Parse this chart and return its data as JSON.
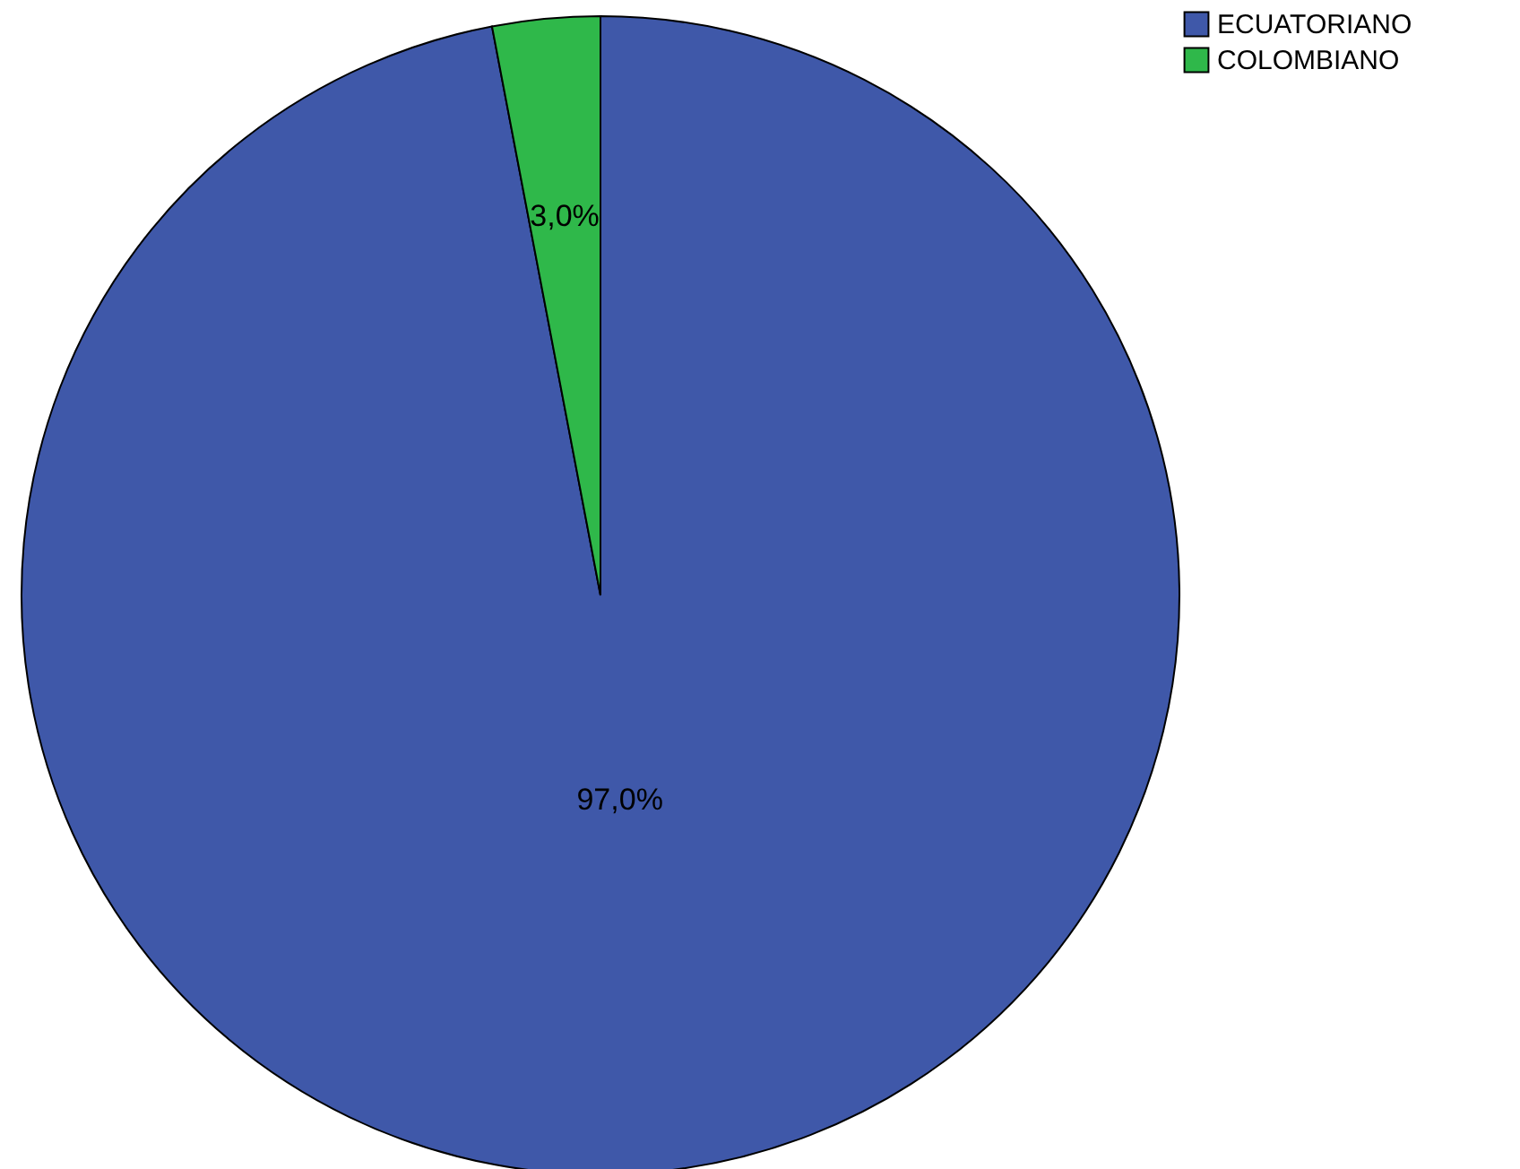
{
  "chart_data": {
    "type": "pie",
    "categories": [
      "ECUATORIANO",
      "COLOMBIANO"
    ],
    "values": [
      97,
      3
    ],
    "colors": [
      "#3f58a9",
      "#2fb84a"
    ],
    "value_labels": [
      "97,0%",
      "3,0%"
    ],
    "legend": "top right"
  }
}
